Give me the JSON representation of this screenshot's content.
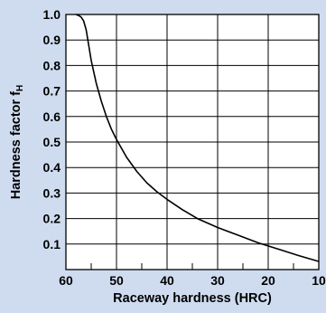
{
  "chart_data": {
    "type": "line",
    "title": "",
    "xlabel": "Raceway hardness (HRC)",
    "ylabel": "Hardness factor f",
    "ylabel_subscript": "H",
    "xlim": [
      60,
      10
    ],
    "ylim": [
      0,
      1.0
    ],
    "x_ticks_major": [
      60,
      50,
      40,
      30,
      20,
      10
    ],
    "x_tick_labels": [
      "60",
      "50",
      "40",
      "30",
      "20",
      "10"
    ],
    "x_ticks_minor": [
      55,
      45,
      35,
      25,
      15
    ],
    "y_ticks": [
      0.1,
      0.2,
      0.3,
      0.4,
      0.5,
      0.6,
      0.7,
      0.8,
      0.9,
      1.0
    ],
    "y_tick_labels": [
      "0.1",
      "0.2",
      "0.3",
      "0.4",
      "0.5",
      "0.6",
      "0.7",
      "0.8",
      "0.9",
      "1.0"
    ],
    "grid": true,
    "background": "#cfdcf0",
    "plot_background": "#ffffff",
    "series": [
      {
        "color": "#000000",
        "x": [
          58,
          57.5,
          57,
          56.5,
          56,
          55.5,
          55,
          54,
          53,
          52,
          51,
          50,
          48,
          46,
          44,
          42,
          40,
          37,
          34,
          30,
          26,
          22,
          18,
          14,
          10
        ],
        "y": [
          1.0,
          0.996,
          0.99,
          0.975,
          0.94,
          0.88,
          0.82,
          0.73,
          0.66,
          0.6,
          0.55,
          0.51,
          0.44,
          0.385,
          0.34,
          0.305,
          0.275,
          0.235,
          0.2,
          0.165,
          0.135,
          0.105,
          0.08,
          0.055,
          0.032
        ]
      }
    ]
  }
}
